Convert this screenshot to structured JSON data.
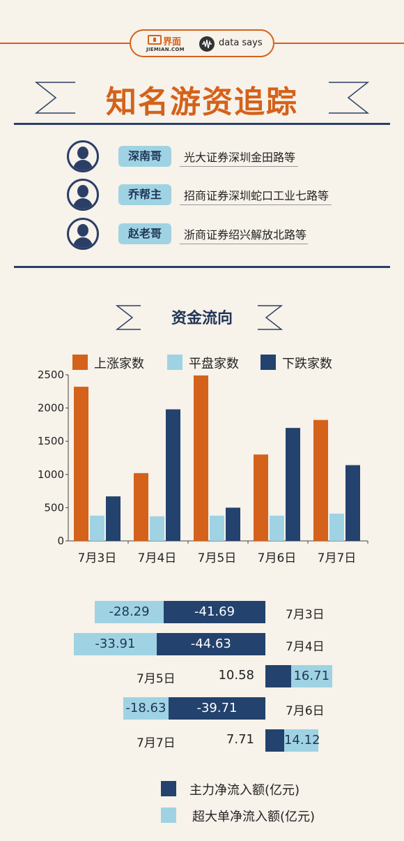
{
  "brand": {
    "jiemian_cn": "界面",
    "jiemian_en": "JIEMIAN.COM",
    "datasays": "data says"
  },
  "title": "知名游资追踪",
  "investors": [
    {
      "name": "深南哥",
      "broker": "光大证券深圳金田路等"
    },
    {
      "name": "乔帮主",
      "broker": "招商证券深圳蛇口工业七路等"
    },
    {
      "name": "赵老哥",
      "broker": "浙商证券绍兴解放北路等"
    }
  ],
  "section_title": "资金流向",
  "colors": {
    "orange": "#d4621a",
    "light_blue": "#9fd3e3",
    "navy": "#23426d",
    "rule": "#2b3f66"
  },
  "chart_data": [
    {
      "type": "bar",
      "categories": [
        "7月3日",
        "7月4日",
        "7月5日",
        "7月6日",
        "7月7日"
      ],
      "series": [
        {
          "name": "上涨家数",
          "values": [
            2320,
            1020,
            2490,
            1300,
            1820
          ]
        },
        {
          "name": "平盘家数",
          "values": [
            380,
            370,
            380,
            380,
            410
          ]
        },
        {
          "name": "下跌家数",
          "values": [
            670,
            1980,
            500,
            1700,
            1140
          ]
        }
      ],
      "yticks": [
        0,
        500,
        1000,
        1500,
        2000,
        2500
      ],
      "ylim": [
        0,
        2500
      ],
      "legend": "top"
    },
    {
      "type": "bar",
      "orientation": "horizontal-stacked",
      "categories": [
        "7月3日",
        "7月4日",
        "7月5日",
        "7月6日",
        "7月7日"
      ],
      "series": [
        {
          "name": "主力净流入额(亿元)",
          "values": [
            -41.69,
            -44.63,
            10.58,
            -39.71,
            7.71
          ]
        },
        {
          "name": "超大单净流入额(亿元)",
          "values": [
            -28.29,
            -33.91,
            16.71,
            -18.63,
            14.12
          ]
        }
      ],
      "labels": {
        "main": [
          "-41.69",
          "-44.63",
          "10.58",
          "-39.71",
          "7.71"
        ],
        "super": [
          "-28.29",
          "-33.91",
          "16.71",
          "-18.63",
          "14.12"
        ]
      },
      "legend": "bottom"
    }
  ]
}
